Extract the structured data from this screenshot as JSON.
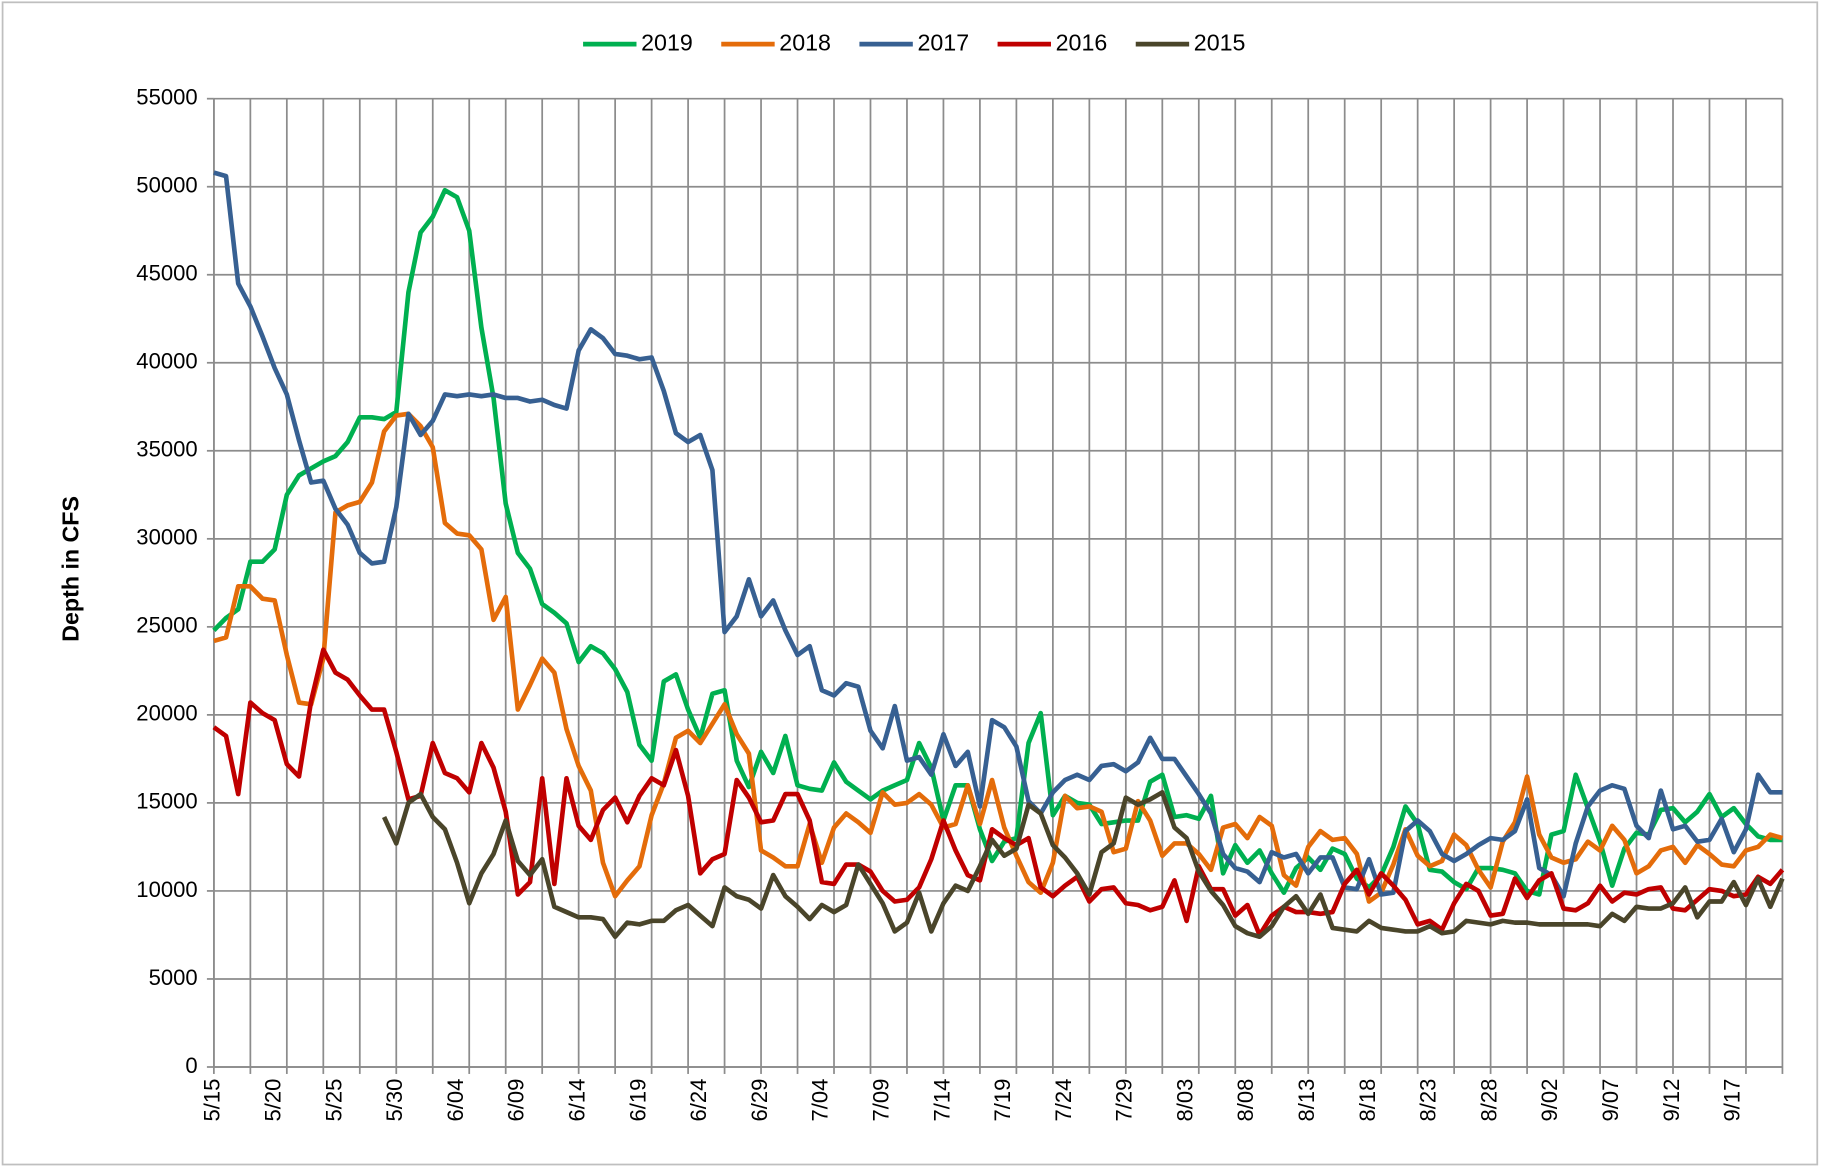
{
  "chart_data": {
    "type": "line",
    "ylabel": "Depth in CFS",
    "categories": [
      "5/15",
      null,
      null,
      null,
      null,
      "5/20",
      null,
      null,
      null,
      null,
      "5/25",
      null,
      null,
      null,
      null,
      "5/30",
      null,
      null,
      null,
      null,
      "6/04",
      null,
      null,
      null,
      null,
      "6/09",
      null,
      null,
      null,
      null,
      "6/14",
      null,
      null,
      null,
      null,
      "6/19",
      null,
      null,
      null,
      null,
      "6/24",
      null,
      null,
      null,
      null,
      "6/29",
      null,
      null,
      null,
      null,
      "7/04",
      null,
      null,
      null,
      null,
      "7/09",
      null,
      null,
      null,
      null,
      "7/14",
      null,
      null,
      null,
      null,
      "7/19",
      null,
      null,
      null,
      null,
      "7/24",
      null,
      null,
      null,
      null,
      "7/29",
      null,
      null,
      null,
      null,
      "8/03",
      null,
      null,
      null,
      null,
      "8/08",
      null,
      null,
      null,
      null,
      "8/13",
      null,
      null,
      null,
      null,
      "8/18",
      null,
      null,
      null,
      null,
      "8/23",
      null,
      null,
      null,
      null,
      "8/28",
      null,
      null,
      null,
      null,
      "9/02",
      null,
      null,
      null,
      null,
      "9/07",
      null,
      null,
      null,
      null,
      "9/12",
      null,
      null,
      null,
      null,
      "9/17",
      null,
      null,
      null,
      null
    ],
    "ylim": [
      0,
      55000
    ],
    "yticks": [
      0,
      5000,
      10000,
      15000,
      20000,
      25000,
      30000,
      35000,
      40000,
      45000,
      50000,
      55000
    ],
    "grid": true,
    "legend": "top",
    "series": [
      {
        "name": "2019",
        "color": "#00b050",
        "values": [
          24800,
          25500,
          26000,
          28700,
          28700,
          29400,
          32500,
          33600,
          34000,
          34400,
          34700,
          35500,
          36900,
          36900,
          36800,
          37200,
          44000,
          47400,
          48300,
          49800,
          49400,
          47500,
          42000,
          38000,
          32000,
          29200,
          28300,
          26300,
          25800,
          25200,
          23000,
          23900,
          23500,
          22600,
          21300,
          18300,
          17400,
          21900,
          22300,
          20300,
          18700,
          21200,
          21400,
          17400,
          15900,
          17900,
          16700,
          18800,
          16000,
          15800,
          15700,
          17300,
          16200,
          15700,
          15200,
          15700,
          16000,
          16300,
          18400,
          17000,
          14000,
          16000,
          16000,
          13500,
          11700,
          12800,
          13000,
          18400,
          20100,
          14300,
          15400,
          15000,
          14900,
          13800,
          13900,
          14000,
          14000,
          16200,
          16600,
          14200,
          14300,
          14100,
          15400,
          11000,
          12600,
          11600,
          12300,
          11000,
          9900,
          11300,
          11900,
          11200,
          12400,
          12100,
          10700,
          10200,
          10900,
          12500,
          14800,
          13800,
          11200,
          11100,
          10500,
          10100,
          11300,
          11300,
          11200,
          11000,
          10000,
          9800,
          13200,
          13400,
          16600,
          14700,
          12800,
          10300,
          12400,
          13300,
          13200,
          14600,
          14700,
          13900,
          14500,
          15500,
          14200,
          14700,
          13800,
          13100,
          12900,
          12900
        ]
      },
      {
        "name": "2018",
        "color": "#e46c0a",
        "values": [
          24200,
          24400,
          27300,
          27300,
          26600,
          26500,
          23400,
          20700,
          20600,
          23200,
          31500,
          31900,
          32100,
          33200,
          36100,
          37000,
          37100,
          36400,
          35200,
          30900,
          30300,
          30200,
          29400,
          25400,
          26700,
          20300,
          21700,
          23200,
          22400,
          19200,
          17100,
          15700,
          11600,
          9700,
          10600,
          11400,
          14300,
          16100,
          18700,
          19100,
          18400,
          19500,
          20600,
          18900,
          17800,
          12300,
          11900,
          11400,
          11400,
          13800,
          11600,
          13600,
          14400,
          13900,
          13300,
          15600,
          14900,
          15000,
          15500,
          14900,
          13600,
          13800,
          16000,
          13800,
          16300,
          13600,
          12000,
          10500,
          9900,
          11600,
          15400,
          14700,
          14800,
          14500,
          12200,
          12400,
          15100,
          14000,
          12000,
          12700,
          12700,
          12100,
          11200,
          13600,
          13800,
          13000,
          14200,
          13700,
          10900,
          10300,
          12500,
          13400,
          12900,
          13000,
          12100,
          9400,
          9900,
          11500,
          13500,
          12000,
          11400,
          11700,
          13200,
          12600,
          11200,
          10200,
          12800,
          13900,
          16500,
          13200,
          11900,
          11600,
          11800,
          12800,
          12300,
          13700,
          12900,
          11000,
          11400,
          12300,
          12500,
          11600,
          12600,
          12100,
          11500,
          11400,
          12300,
          12500,
          13200,
          13000
        ]
      },
      {
        "name": "2017",
        "color": "#376092",
        "values": [
          50800,
          50600,
          44500,
          43200,
          41500,
          39700,
          38200,
          35600,
          33200,
          33300,
          31700,
          30800,
          29200,
          28600,
          28700,
          31800,
          37100,
          35900,
          36700,
          38200,
          38100,
          38200,
          38100,
          38200,
          38000,
          38000,
          37800,
          37900,
          37600,
          37400,
          40700,
          41900,
          41400,
          40500,
          40400,
          40200,
          40300,
          38400,
          36000,
          35500,
          35900,
          33900,
          24700,
          25600,
          27700,
          25600,
          26500,
          24800,
          23400,
          23900,
          21400,
          21100,
          21800,
          21600,
          19100,
          18100,
          20500,
          17400,
          17600,
          16600,
          18900,
          17100,
          17900,
          14800,
          19700,
          19300,
          18200,
          15100,
          14400,
          15600,
          16300,
          16600,
          16300,
          17100,
          17200,
          16800,
          17300,
          18700,
          17500,
          17500,
          16500,
          15500,
          14400,
          12100,
          11300,
          11100,
          10500,
          12200,
          11900,
          12100,
          11000,
          11900,
          11900,
          10200,
          10100,
          11800,
          9800,
          9900,
          13400,
          14000,
          13400,
          12100,
          11700,
          12100,
          12600,
          13000,
          12900,
          13400,
          15200,
          11300,
          10900,
          9700,
          12700,
          14800,
          15700,
          16000,
          15800,
          13700,
          13000,
          15700,
          13500,
          13700,
          12800,
          12900,
          14100,
          12200,
          13500,
          16600,
          15600,
          15600
        ]
      },
      {
        "name": "2016",
        "color": "#c00000",
        "values": [
          19300,
          18800,
          15500,
          20700,
          20100,
          19700,
          17200,
          16500,
          20800,
          23700,
          22400,
          22000,
          21100,
          20300,
          20300,
          17900,
          15200,
          15400,
          18400,
          16700,
          16400,
          15600,
          18400,
          17000,
          14500,
          9800,
          10500,
          16400,
          10400,
          16400,
          13700,
          12900,
          14600,
          15300,
          13900,
          15400,
          16400,
          16000,
          18000,
          15400,
          11000,
          11800,
          12100,
          16300,
          15300,
          13900,
          14000,
          15500,
          15500,
          14000,
          10500,
          10400,
          11500,
          11500,
          11100,
          10000,
          9400,
          9500,
          10200,
          11800,
          14000,
          12300,
          10900,
          10600,
          13500,
          13000,
          12600,
          13000,
          10200,
          9700,
          10300,
          10800,
          9400,
          10100,
          10200,
          9300,
          9200,
          8900,
          9100,
          10600,
          8300,
          11400,
          10100,
          10100,
          8600,
          9200,
          7500,
          8600,
          9100,
          8800,
          8800,
          8700,
          8800,
          10400,
          11200,
          9800,
          11000,
          10300,
          9500,
          8100,
          8300,
          7800,
          9300,
          10400,
          10000,
          8600,
          8700,
          10700,
          9600,
          10600,
          11000,
          9000,
          8900,
          9300,
          10300,
          9400,
          9900,
          9800,
          10100,
          10200,
          9000,
          8900,
          9500,
          10100,
          10000,
          9700,
          9800,
          10800,
          10400,
          11200
        ]
      },
      {
        "name": "2015",
        "color": "#4a452a",
        "values": [
          null,
          null,
          null,
          null,
          null,
          null,
          null,
          null,
          null,
          null,
          null,
          null,
          null,
          null,
          14200,
          12700,
          15000,
          15500,
          14200,
          13500,
          11600,
          9300,
          11000,
          12100,
          14000,
          11700,
          10900,
          11800,
          9100,
          8800,
          8500,
          8500,
          8400,
          7400,
          8200,
          8100,
          8300,
          8300,
          8900,
          9200,
          8600,
          8000,
          10200,
          9700,
          9500,
          9000,
          10900,
          9700,
          9100,
          8400,
          9200,
          8800,
          9200,
          11500,
          10400,
          9300,
          7700,
          8200,
          9900,
          7700,
          9300,
          10300,
          10000,
          11400,
          12900,
          12000,
          12400,
          14900,
          14400,
          12600,
          11900,
          11000,
          9800,
          12200,
          12700,
          15300,
          14900,
          15200,
          15600,
          13600,
          13000,
          11100,
          10000,
          9200,
          8000,
          7600,
          7400,
          8000,
          9100,
          9700,
          8700,
          9800,
          7900,
          7800,
          7700,
          8300,
          7900,
          7800,
          7700,
          7700,
          8000,
          7600,
          7700,
          8300,
          8200,
          8100,
          8300,
          8200,
          8200,
          8100,
          8100,
          8100,
          8100,
          8100,
          8000,
          8700,
          8300,
          9100,
          9000,
          9000,
          9300,
          10200,
          8500,
          9400,
          9400,
          10500,
          9200,
          10700,
          9100,
          10700
        ]
      }
    ]
  }
}
